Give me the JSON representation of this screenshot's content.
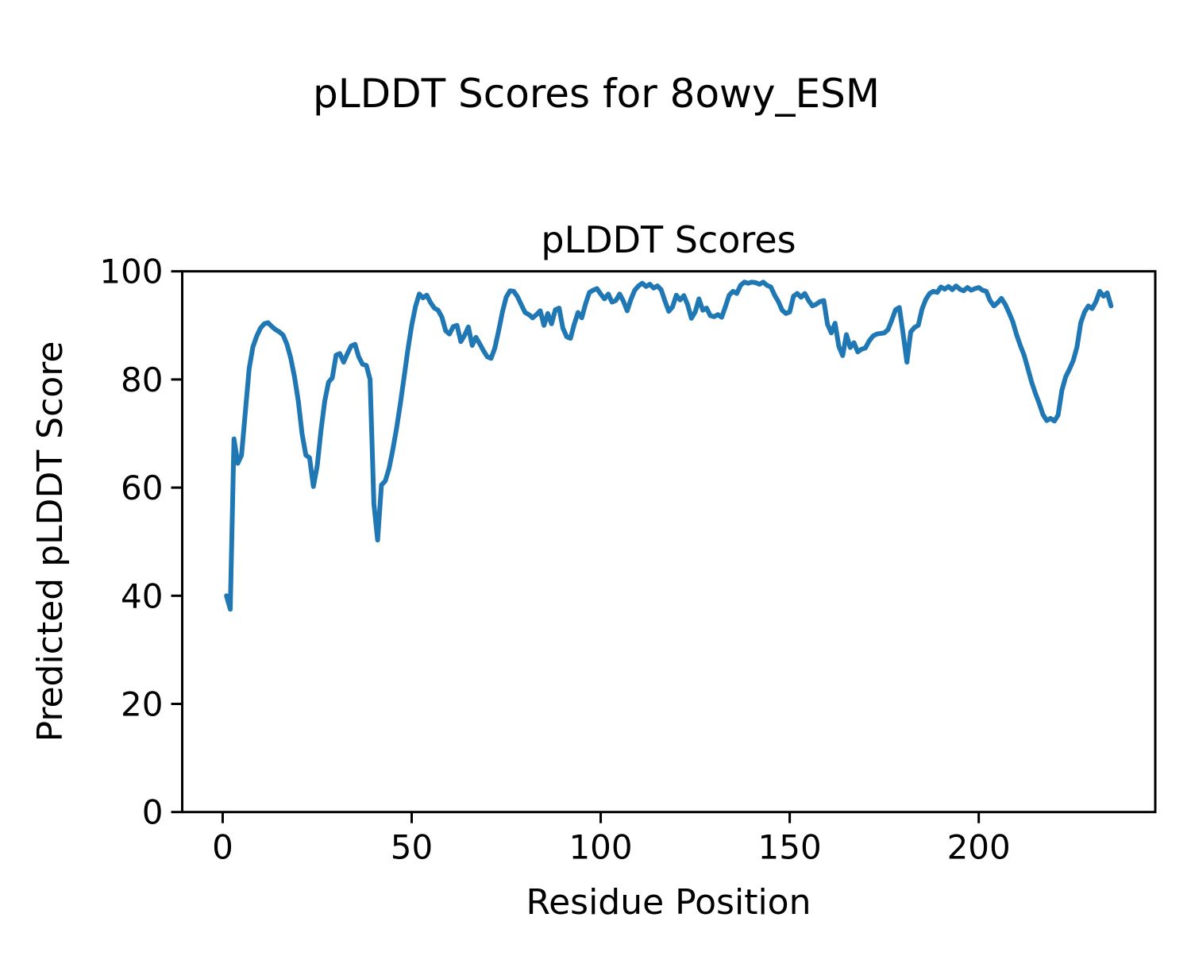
{
  "figure": {
    "suptitle": "pLDDT Scores for 8owy_ESM"
  },
  "chart_data": {
    "type": "line",
    "title": "pLDDT Scores",
    "xlabel": "Residue Position",
    "ylabel": "Predicted pLDDT Score",
    "x_start": 1,
    "x_step": 1,
    "xlim": [
      -10.7,
      246.7
    ],
    "ylim": [
      0,
      100
    ],
    "xticks": [
      0,
      50,
      100,
      150,
      200
    ],
    "yticks": [
      0,
      20,
      40,
      60,
      80,
      100
    ],
    "grid": false,
    "legend": null,
    "line_color": "#1f77b4",
    "background": "#ffffff",
    "values": [
      40,
      37.5,
      69,
      64.5,
      66,
      74,
      82,
      86,
      88,
      89.5,
      90.3,
      90.5,
      89.8,
      89.2,
      88.8,
      88.2,
      86.5,
      84,
      80.5,
      76,
      70,
      66,
      65.5,
      60.2,
      64,
      70.5,
      76,
      79.5,
      80.3,
      84.5,
      84.8,
      83.2,
      84.8,
      86.2,
      86.5,
      84.2,
      82.8,
      82.6,
      80,
      57,
      50.3,
      60.5,
      61.2,
      63.5,
      67,
      71,
      75.5,
      80.5,
      85.5,
      90,
      93.5,
      95.8,
      95.1,
      95.6,
      94.2,
      93.2,
      92.8,
      91.5,
      89,
      88.4,
      89.8,
      90,
      87,
      88.2,
      89.7,
      86.3,
      87.8,
      86.6,
      85.3,
      84.2,
      83.9,
      85.8,
      89,
      92.5,
      95.2,
      96.4,
      96.3,
      95.3,
      93.8,
      92.4,
      92,
      91.4,
      92,
      92.7,
      90,
      92.2,
      90.3,
      92.9,
      93.2,
      89.5,
      87.9,
      87.6,
      90.2,
      92.4,
      91.4,
      94,
      96.1,
      96.5,
      96.8,
      95.8,
      94.9,
      95.8,
      94.3,
      94.6,
      95.8,
      94.5,
      92.7,
      94.8,
      96.5,
      97.3,
      97.8,
      97.2,
      97.6,
      96.9,
      97.3,
      96.6,
      94.5,
      92.6,
      93.4,
      95.6,
      94.7,
      95.5,
      93.8,
      91.3,
      92.5,
      94.9,
      92.8,
      93.2,
      91.8,
      91.6,
      92,
      91.5,
      93.5,
      95.6,
      96.3,
      95.9,
      97.4,
      98,
      97.8,
      98,
      97.9,
      97.6,
      98,
      97.4,
      97.1,
      95.6,
      94.4,
      92.8,
      92.2,
      92.5,
      95.4,
      95.9,
      95.2,
      95.9,
      94.6,
      93.6,
      93.9,
      94.4,
      94.6,
      90.2,
      88.6,
      90.4,
      86.1,
      84.4,
      88.3,
      85.9,
      86.8,
      85.1,
      85.6,
      85.8,
      87.1,
      88,
      88.4,
      88.5,
      88.6,
      89.2,
      91,
      92.9,
      93.3,
      88.5,
      83.2,
      88.8,
      89.6,
      90,
      93,
      94.8,
      95.9,
      96.3,
      96.1,
      97.1,
      96.7,
      97.2,
      96.6,
      97.3,
      96.7,
      96.4,
      97,
      96.5,
      96.8,
      97,
      96.5,
      96.3,
      94.6,
      93.6,
      94.2,
      95,
      93.9,
      92.4,
      90.7,
      88.3,
      86.3,
      84.5,
      82,
      79.5,
      77.4,
      75.6,
      73.5,
      72.4,
      72.8,
      72.3,
      73.4,
      78,
      80.5,
      81.9,
      83.5,
      86,
      90.5,
      92.5,
      93.6,
      93.1,
      94.4,
      96.3,
      95.4,
      96,
      93.6
    ]
  }
}
